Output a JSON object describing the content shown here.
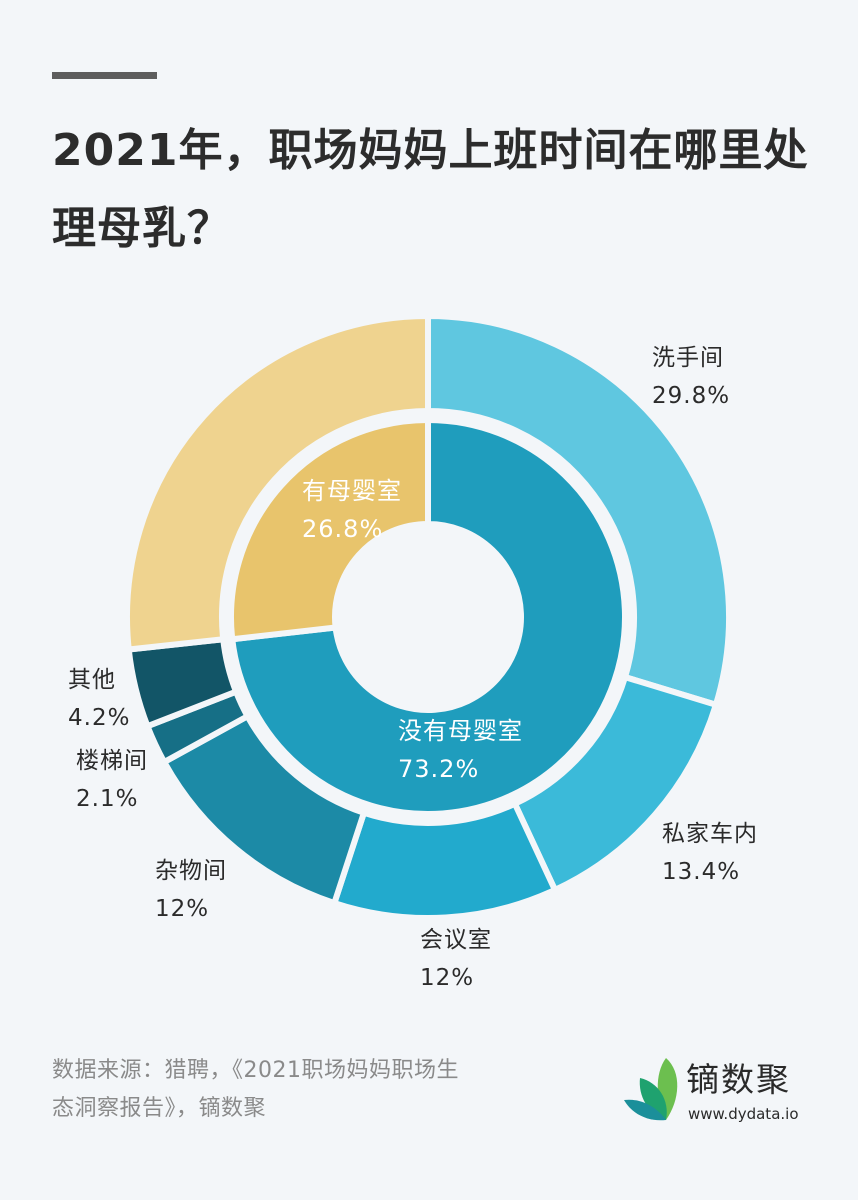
{
  "header": {
    "title": "2021年，职场妈妈上班时间在哪里处理母乳？"
  },
  "chart_data": {
    "type": "pie",
    "subtype": "nested-donut",
    "title": "2021年，职场妈妈上班时间在哪里处理母乳？",
    "inner_ring": [
      {
        "name": "没有母婴室",
        "value": 73.2,
        "label": "73.2%",
        "color": "#1f9dbd"
      },
      {
        "name": "有母婴室",
        "value": 26.8,
        "label": "26.8%",
        "color": "#e8c46c"
      }
    ],
    "outer_ring": [
      {
        "name": "洗手间",
        "value": 29.8,
        "label": "29.8%",
        "color": "#5fc7e0",
        "parent": "没有母婴室"
      },
      {
        "name": "私家车内",
        "value": 13.4,
        "label": "13.4%",
        "color": "#3bbad9",
        "parent": "没有母婴室"
      },
      {
        "name": "会议室",
        "value": 12,
        "label": "12%",
        "color": "#22aacd",
        "parent": "没有母婴室"
      },
      {
        "name": "杂物间",
        "value": 12,
        "label": "12%",
        "color": "#1c8aa6",
        "parent": "没有母婴室"
      },
      {
        "name": "楼梯间",
        "value": 2.1,
        "label": "2.1%",
        "color": "#166f86",
        "parent": "没有母婴室"
      },
      {
        "name": "其他",
        "value": 4.2,
        "label": "4.2%",
        "color": "#125567",
        "parent": "没有母婴室"
      },
      {
        "name": "有母婴室",
        "value": 26.8,
        "label": "",
        "color": "#efd38f",
        "parent": "有母婴室"
      }
    ],
    "start_angle": "12 o'clock, clockwise",
    "legend": "none (direct labels)"
  },
  "labels": {
    "washroom": {
      "name": "洗手间",
      "pct": "29.8%"
    },
    "car": {
      "name": "私家车内",
      "pct": "13.4%"
    },
    "meeting": {
      "name": "会议室",
      "pct": "12%"
    },
    "storage": {
      "name": "杂物间",
      "pct": "12%"
    },
    "stairs": {
      "name": "楼梯间",
      "pct": "2.1%"
    },
    "other": {
      "name": "其他",
      "pct": "4.2%"
    },
    "has_room": {
      "name": "有母婴室",
      "pct": "26.8%"
    },
    "no_room": {
      "name": "没有母婴室",
      "pct": "73.2%"
    }
  },
  "footer": {
    "source_line1": "数据来源：猎聘，《2021职场妈妈职场生",
    "source_line2": "态洞察报告》，镝数聚",
    "logo_name": "镝数聚",
    "logo_url": "www.dydata.io"
  },
  "colors": {
    "background": "#f3f6f9",
    "title": "#2c2c2c",
    "source_text": "#8a8a8a",
    "logo_leaf_light": "#6cbf4f",
    "logo_leaf_mid": "#1fa26f",
    "logo_leaf_dark": "#1b8f9a"
  }
}
